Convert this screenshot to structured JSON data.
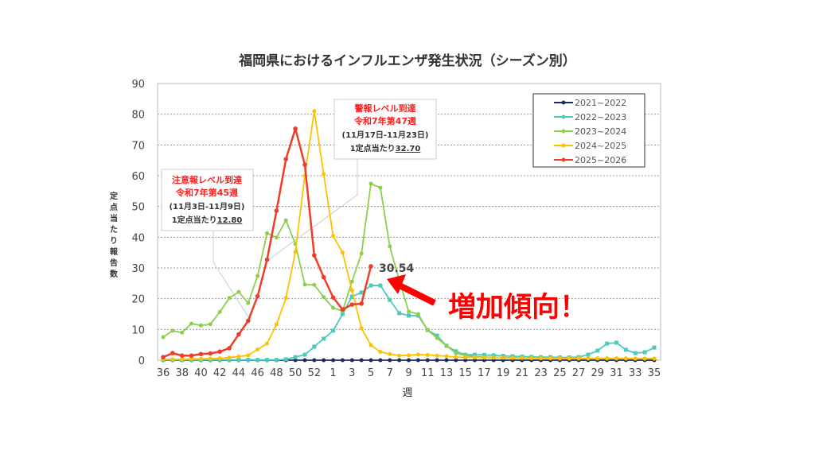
{
  "chart_data": {
    "type": "line",
    "title": "福岡県におけるインフルエンザ発生状況（シーズン別）",
    "xlabel": "週",
    "ylabel": "定点当たり報告数",
    "ylim": [
      0,
      90
    ],
    "yticks": [
      0,
      10,
      20,
      30,
      40,
      50,
      60,
      70,
      80,
      90
    ],
    "grid": true,
    "legend_position": "top-right",
    "x": [
      36,
      37,
      38,
      39,
      40,
      41,
      42,
      43,
      44,
      45,
      46,
      47,
      48,
      49,
      50,
      51,
      52,
      53,
      1,
      2,
      3,
      4,
      5,
      6,
      7,
      8,
      9,
      10,
      11,
      12,
      13,
      14,
      15,
      16,
      17,
      18,
      19,
      20,
      21,
      22,
      23,
      24,
      25,
      26,
      27,
      28,
      29,
      30,
      31,
      32,
      33,
      34,
      35
    ],
    "xtick_labels": [
      "36",
      "38",
      "40",
      "42",
      "44",
      "46",
      "48",
      "50",
      "52",
      "1",
      "3",
      "5",
      "7",
      "9",
      "11",
      "13",
      "15",
      "17",
      "19",
      "21",
      "23",
      "25",
      "27",
      "29",
      "31",
      "33",
      "35"
    ],
    "series": [
      {
        "name": "2021~2022",
        "color": "#1f2a5c",
        "values": [
          0,
          0,
          0,
          0,
          0,
          0,
          0,
          0,
          0,
          0,
          0,
          0,
          0,
          0,
          0,
          0,
          0,
          0,
          0,
          0,
          0,
          0,
          0,
          0,
          0,
          0,
          0,
          0,
          0,
          0,
          0,
          0,
          0,
          0,
          0,
          0,
          0,
          0,
          0,
          0,
          0,
          0,
          0,
          0,
          0,
          0,
          0,
          0,
          0,
          0,
          0,
          0,
          0
        ]
      },
      {
        "name": "2022~2023",
        "color": "#4fc9c0",
        "values": [
          0.1,
          0.1,
          0.1,
          0.1,
          0.1,
          0.1,
          0.1,
          0.1,
          0.1,
          0.1,
          0.1,
          0.1,
          0.1,
          0.3,
          1.0,
          1.8,
          4.4,
          7.0,
          9.6,
          15.0,
          20.7,
          22.0,
          24.3,
          24.3,
          19.6,
          15.3,
          14.5,
          14.5,
          9.8,
          8.0,
          4.7,
          2.9,
          1.8,
          1.8,
          1.7,
          1.6,
          1.4,
          1.3,
          1.2,
          1.1,
          1.0,
          1.0,
          0.9,
          0.9,
          1.0,
          1.8,
          3.1,
          5.4,
          5.7,
          3.4,
          2.3,
          2.6,
          4.1
        ]
      },
      {
        "name": "2023~2024",
        "color": "#8ccf4d",
        "values": [
          7.5,
          9.6,
          9.0,
          11.9,
          11.3,
          11.7,
          15.7,
          20.2,
          22.2,
          18.6,
          27.4,
          41.3,
          39.9,
          45.5,
          37.8,
          24.6,
          24.5,
          20.5,
          17.0,
          16.0,
          25.6,
          34.7,
          57.4,
          56.1,
          37.0,
          26.0,
          15.8,
          15.0,
          9.8,
          7.2,
          4.7,
          2.3,
          1.5,
          1.2,
          1.0,
          0.9,
          0.8,
          0.8,
          0.7,
          0.6,
          0.6,
          0.6,
          0.5,
          0.5,
          0.5,
          0.5,
          0.5,
          0.5,
          0.5,
          0.5,
          0.5,
          0.5,
          0.5
        ]
      },
      {
        "name": "2024~2025",
        "color": "#ffc000",
        "values": [
          0.3,
          0.3,
          0.3,
          0.4,
          0.4,
          0.5,
          0.6,
          0.8,
          1.2,
          1.6,
          3.5,
          5.4,
          11.6,
          20.2,
          35.2,
          60.0,
          81.0,
          60.5,
          40.4,
          35.0,
          22.7,
          10.4,
          4.9,
          2.7,
          2.0,
          1.5,
          1.6,
          1.8,
          1.7,
          1.5,
          1.3,
          1.0,
          0.9,
          0.9,
          0.8,
          0.8,
          0.8,
          0.7,
          0.7,
          0.7,
          0.6,
          0.6,
          0.6,
          0.6,
          0.6,
          0.6,
          0.6,
          0.6,
          0.6,
          0.6,
          0.5,
          0.5,
          0.5
        ]
      },
      {
        "name": "2025~2026",
        "color": "#f03c28",
        "values": [
          1.0,
          2.3,
          1.5,
          1.5,
          2.0,
          2.2,
          2.8,
          3.9,
          8.4,
          12.8,
          20.8,
          32.7,
          48.6,
          65.4,
          75.3,
          63.6,
          34.1,
          27.0,
          20.4,
          16.5,
          18.1,
          18.4,
          30.54,
          null,
          null,
          null,
          null,
          null,
          null,
          null,
          null,
          null,
          null,
          null,
          null,
          null,
          null,
          null,
          null,
          null,
          null,
          null,
          null,
          null,
          null,
          null,
          null,
          null,
          null,
          null,
          null,
          null,
          null
        ]
      }
    ],
    "annotations": {
      "caution": {
        "line1": "注意報レベル到達",
        "line2": "令和7年第45週",
        "line3": "(11月3日-11月9日)",
        "line4_prefix": "1定点当たり",
        "line4_value": "12.80"
      },
      "warning": {
        "line1": "警報レベル到達",
        "line2": "令和7年第47週",
        "line3": "(11月17日-11月23日)",
        "line4_prefix": "1定点当たり",
        "line4_value": "32.70"
      },
      "latest_value": "30.54",
      "trend_text": "増加傾向！",
      "accent_color": "#ff0000"
    }
  }
}
